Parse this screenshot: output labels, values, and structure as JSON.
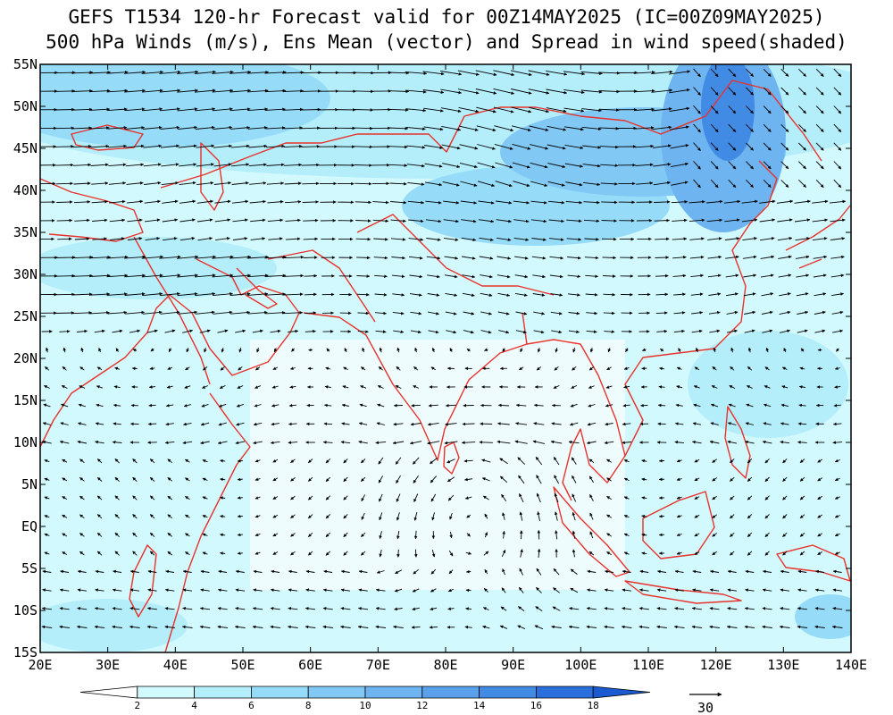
{
  "title_line1": "GEFS T1534 120-hr Forecast valid for 00Z14MAY2025 (IC=00Z09MAY2025)",
  "title_line2": "500 hPa Winds (m/s), Ens Mean (vector) and Spread in wind speed(shaded)",
  "map": {
    "lon_range": [
      20,
      140
    ],
    "lat_range": [
      -15,
      55
    ],
    "lat_labels": [
      "55N",
      "50N",
      "45N",
      "40N",
      "35N",
      "30N",
      "25N",
      "20N",
      "15N",
      "10N",
      "5N",
      "EQ",
      "5S",
      "10S",
      "15S"
    ],
    "lon_labels": [
      "20E",
      "30E",
      "40E",
      "50E",
      "60E",
      "70E",
      "80E",
      "90E",
      "100E",
      "110E",
      "120E",
      "130E",
      "140E"
    ],
    "coastline_color": "#e8322c",
    "vector_color": "#000000"
  },
  "colorbar": {
    "levels": [
      "2",
      "4",
      "6",
      "8",
      "10",
      "12",
      "14",
      "16",
      "18"
    ],
    "colors": [
      "#ffffff",
      "#d2f9fd",
      "#b4eefb",
      "#96dcf9",
      "#82c8f5",
      "#6eb4f0",
      "#5aa0eb",
      "#428be5",
      "#2a6fdc",
      "#1c5ad2"
    ]
  },
  "reference_vector": {
    "label": "30"
  }
}
